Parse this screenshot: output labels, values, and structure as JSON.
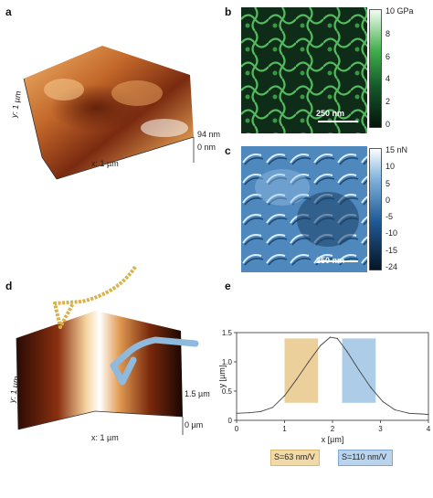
{
  "panels": {
    "a": {
      "letter": "a",
      "x_axis": "x: 1 µm",
      "y_axis": "y: 1 µm",
      "z_max": "94 nm",
      "z_min": "0 nm"
    },
    "b": {
      "letter": "b",
      "colorbar_ticks": [
        "10 GPa",
        "8",
        "6",
        "4",
        "2",
        "0"
      ],
      "scalebar": "250 nm"
    },
    "c": {
      "letter": "c",
      "colorbar_ticks": [
        "15 nN",
        "10",
        "5",
        "0",
        "-5",
        "-10",
        "-15",
        "-24"
      ],
      "scalebar": "250 nm"
    },
    "d": {
      "letter": "d",
      "x_axis": "x: 1 µm",
      "y_axis": "y: 1 µm",
      "z_max": "1.5 µm",
      "z_min": "0 µm"
    },
    "e": {
      "letter": "e",
      "legend_left": "S=63 nm/V",
      "legend_right": "S=110 nm/V"
    }
  },
  "chart_data": {
    "type": "line",
    "xlabel": "x [µm]",
    "ylabel": "y [µm]",
    "xlim": [
      0,
      4
    ],
    "ylim": [
      0,
      1.5
    ],
    "x_ticks": [
      0,
      1,
      2,
      3,
      4
    ],
    "y_ticks": [
      0,
      0.5,
      1,
      1.5
    ],
    "y_tick_labels": [
      "0",
      "0.5",
      "1.0",
      "1.5"
    ],
    "x": [
      0,
      0.25,
      0.5,
      0.75,
      1.0,
      1.25,
      1.5,
      1.75,
      1.95,
      2.1,
      2.3,
      2.55,
      2.8,
      3.05,
      3.3,
      3.6,
      3.85,
      4.0
    ],
    "y": [
      0.12,
      0.13,
      0.15,
      0.22,
      0.42,
      0.7,
      1.0,
      1.28,
      1.42,
      1.4,
      1.18,
      0.86,
      0.56,
      0.32,
      0.18,
      0.12,
      0.11,
      0.1
    ],
    "regions": [
      {
        "x0": 1.0,
        "x1": 1.7,
        "y0": 0.3,
        "y1": 1.4,
        "color": "#e8c88a"
      },
      {
        "x0": 2.2,
        "x1": 2.9,
        "y0": 0.3,
        "y1": 1.4,
        "color": "#9ec3e3"
      }
    ]
  }
}
